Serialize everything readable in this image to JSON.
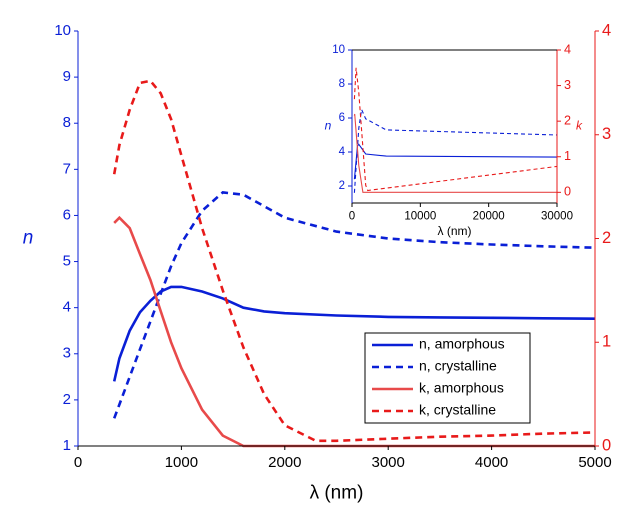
{
  "chart_data": [
    {
      "type": "line",
      "xlabel": "λ (nm)",
      "ylabel": "n",
      "xlim": [
        0,
        5000
      ],
      "xticks": [
        0,
        1000,
        2000,
        3000,
        4000,
        5000
      ],
      "ylim": [
        1,
        10
      ],
      "yticks": [
        1,
        2,
        3,
        4,
        5,
        6,
        7,
        8,
        9,
        10
      ],
      "y2lim": [
        0,
        4
      ],
      "y2ticks": [
        0,
        1,
        2,
        3,
        4
      ],
      "legend": "lower right",
      "series": [
        {
          "name": "n, amorphous",
          "color": "#0a1fd6",
          "style": "solid",
          "axis": "y",
          "x": [
            350,
            400,
            500,
            600,
            700,
            800,
            900,
            1000,
            1200,
            1400,
            1600,
            1800,
            2000,
            2500,
            3000,
            3500,
            4000,
            4500,
            5000
          ],
          "values": [
            2.4,
            2.9,
            3.5,
            3.9,
            4.15,
            4.35,
            4.45,
            4.45,
            4.35,
            4.2,
            4.0,
            3.92,
            3.88,
            3.83,
            3.8,
            3.79,
            3.78,
            3.77,
            3.76
          ]
        },
        {
          "name": "n, crystalline",
          "color": "#0a1fd6",
          "style": "dashed",
          "axis": "y",
          "x": [
            350,
            400,
            500,
            600,
            700,
            800,
            900,
            1000,
            1200,
            1400,
            1600,
            1800,
            2000,
            2500,
            3000,
            3500,
            4000,
            4500,
            5000
          ],
          "values": [
            1.6,
            1.9,
            2.5,
            3.1,
            3.7,
            4.3,
            4.9,
            5.4,
            6.1,
            6.5,
            6.45,
            6.2,
            5.95,
            5.65,
            5.5,
            5.42,
            5.37,
            5.33,
            5.3
          ]
        },
        {
          "name": "k, amorphous",
          "color": "#e84a4a",
          "style": "solid",
          "axis": "y2",
          "x": [
            350,
            400,
            500,
            600,
            700,
            800,
            900,
            1000,
            1200,
            1400,
            1600,
            1800,
            2000,
            3000,
            4000,
            5000
          ],
          "values": [
            2.15,
            2.2,
            2.1,
            1.85,
            1.6,
            1.3,
            1.0,
            0.75,
            0.35,
            0.1,
            0.0,
            0,
            0,
            0,
            0,
            0
          ]
        },
        {
          "name": "k, crystalline",
          "color": "#e81a1a",
          "style": "dashed",
          "axis": "y2",
          "x": [
            350,
            400,
            500,
            600,
            700,
            800,
            900,
            1000,
            1200,
            1400,
            1600,
            1800,
            2000,
            2300,
            2500,
            3000,
            3500,
            4000,
            4500,
            5000
          ],
          "values": [
            2.62,
            2.9,
            3.24,
            3.5,
            3.52,
            3.4,
            3.15,
            2.8,
            2.1,
            1.5,
            0.95,
            0.5,
            0.2,
            0.05,
            0.05,
            0.07,
            0.09,
            0.1,
            0.12,
            0.13
          ]
        }
      ]
    },
    {
      "type": "line",
      "xlabel": "λ (nm)",
      "ylabel": "n",
      "y2label": "k",
      "xlim": [
        0,
        30000
      ],
      "xticks": [
        0,
        10000,
        20000,
        30000
      ],
      "ylim": [
        1,
        10
      ],
      "yticks": [
        2,
        4,
        6,
        8,
        10
      ],
      "y2lim": [
        -0.3,
        4
      ],
      "y2ticks": [
        0,
        1,
        2,
        3,
        4
      ],
      "series": [
        {
          "color": "#0a1fd6",
          "style": "solid",
          "axis": "y",
          "x": [
            350,
            800,
            1000,
            2000,
            5000,
            30000
          ],
          "values": [
            2.4,
            4.35,
            4.45,
            3.88,
            3.76,
            3.7
          ]
        },
        {
          "color": "#0a1fd6",
          "style": "dashed",
          "axis": "y",
          "x": [
            350,
            800,
            1000,
            1400,
            2000,
            5000,
            30000
          ],
          "values": [
            1.6,
            4.3,
            5.4,
            6.5,
            5.95,
            5.3,
            5.0
          ]
        },
        {
          "color": "#e84a4a",
          "style": "solid",
          "axis": "y2",
          "x": [
            350,
            400,
            1000,
            1600,
            30000
          ],
          "values": [
            2.15,
            2.2,
            0.75,
            0,
            0
          ]
        },
        {
          "color": "#e81a1a",
          "style": "dashed",
          "axis": "y2",
          "x": [
            350,
            600,
            1000,
            2000,
            2300,
            30000
          ],
          "values": [
            2.62,
            3.5,
            2.8,
            0.2,
            0.05,
            0.73
          ]
        }
      ]
    }
  ]
}
